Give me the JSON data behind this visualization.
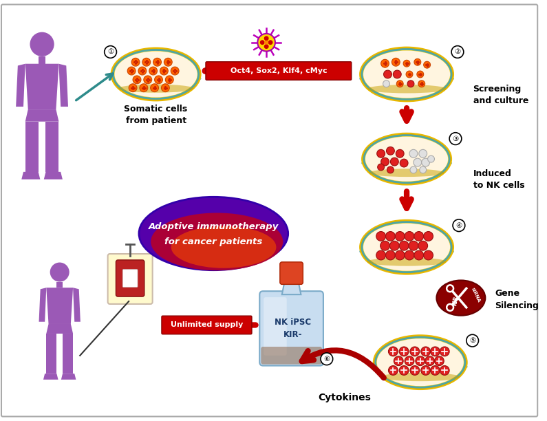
{
  "background_color": "#ffffff",
  "border_color": "#AAAAAA",
  "human_color": "#9B59B6",
  "petri_outer_color": "#E8B800",
  "petri_mid_color": "#F5D020",
  "petri_inner_color": "#FFF5E0",
  "petri_edge_color": "#4DA6A6",
  "arrow_red": "#CC0000",
  "arrow_teal": "#2E8B8B",
  "arrow_dark_red": "#AA0000",
  "cell_red": "#E02020",
  "cell_orange": "#FF6600",
  "cell_white": "#DDDDDD",
  "text_somatic": "Somatic cells\nfrom patient",
  "text_oct4": "Oct4, Sox2, Klf4, cMyc",
  "text_screening": "Screening\nand culture",
  "text_induced": "Induced\nto NK cells",
  "text_gene": "Gene\nSilencing",
  "text_cytokines": "Cytokines",
  "text_unlimited": "Unlimited supply",
  "text_nkipsc": "NK iPSC\nKIR-",
  "text_adoptive_1": "Adoptive immunotherapy",
  "text_adoptive_2": "for cancer patients",
  "ellipse_outer": "#5500AA",
  "ellipse_mid": "#AA0033",
  "ellipse_inner": "#DD3300"
}
